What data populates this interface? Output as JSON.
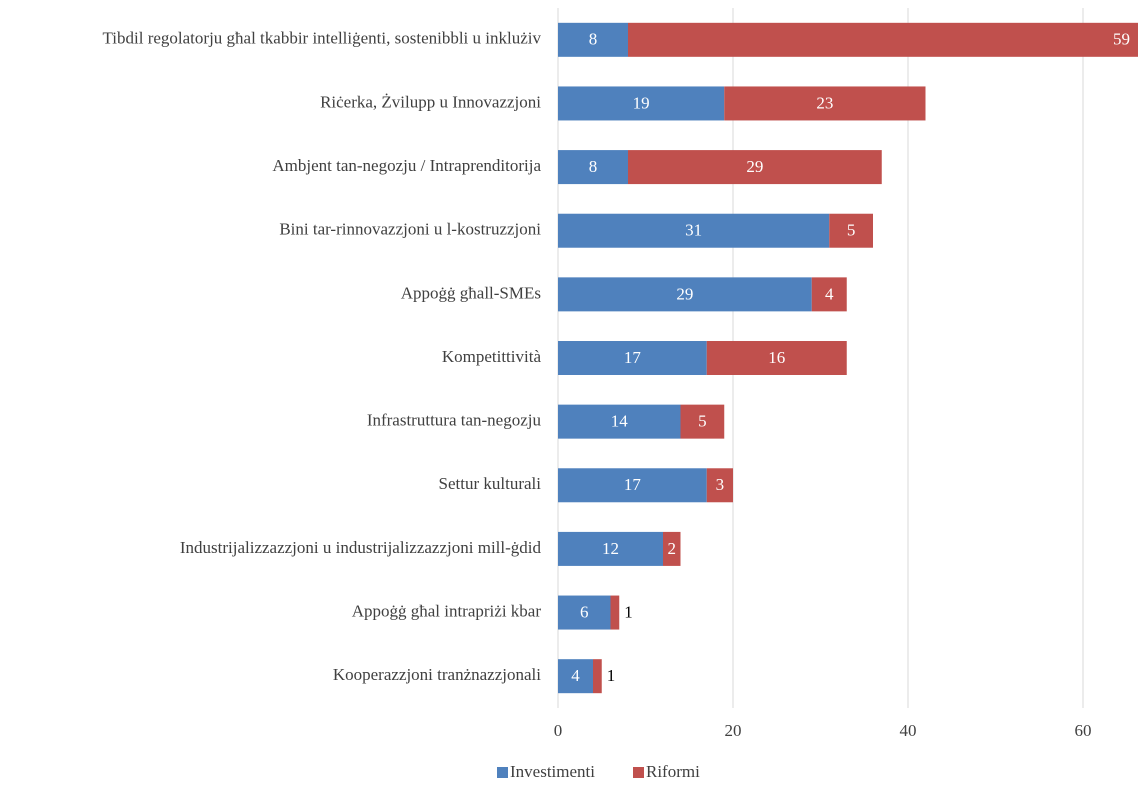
{
  "chart_data": {
    "type": "stacked_barh",
    "categories": [
      "Tibdil regolatorju għal tkabbir intelliġenti, sostenibbli u inklużiv",
      "Riċerka, Żvilupp u Innovazzjoni",
      "Ambjent tan-negozju / Intraprenditorija",
      "Bini tar-rinnovazzjoni u l-kostruzzjoni",
      "Appoġġ għall-SMEs",
      "Kompetittività",
      "Infrastruttura tan-negozju",
      "Settur kulturali",
      "Industrijalizzazzjoni u industrijalizzazzjoni mill-ġdid",
      "Appoġġ għal intrapriżi kbar",
      "Kooperazzjoni tranżnazzjonali"
    ],
    "series": [
      {
        "name": "Investimenti",
        "color": "#4f81bd",
        "values": [
          8,
          19,
          8,
          31,
          29,
          17,
          14,
          17,
          12,
          6,
          4
        ]
      },
      {
        "name": "Riformi",
        "color": "#c0504d",
        "values": [
          59,
          23,
          29,
          5,
          4,
          16,
          5,
          3,
          2,
          1,
          1
        ]
      }
    ],
    "xlim": [
      0,
      66
    ],
    "xticks": [
      0,
      20,
      40,
      60
    ],
    "grid": true,
    "legend": "bottom"
  }
}
